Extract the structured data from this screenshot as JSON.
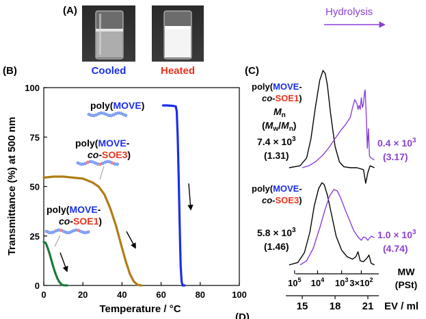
{
  "colors": {
    "blue": "#1a2ee8",
    "red": "#e8321a",
    "purple": "#8a3fd8",
    "olive": "#b07c14",
    "green": "#1a7a3a",
    "black": "#000000",
    "chain_blue": "#8fb0ff",
    "chain_red": "#ff8c8c"
  },
  "panel_a": {
    "label": "(A)",
    "left_caption": "Cooled",
    "right_caption": "Heated"
  },
  "panel_b": {
    "label": "(B)",
    "polymers": [
      {
        "prefix": "poly(",
        "parts": [
          {
            "text": "MOVE",
            "color": "blue"
          }
        ],
        "suffix": ")"
      },
      {
        "line1": [
          {
            "text": "poly(",
            "color": "black"
          },
          {
            "text": "MOVE",
            "color": "blue"
          },
          {
            "text": "-",
            "color": "black"
          }
        ],
        "line2": [
          {
            "text": "co",
            "color": "black",
            "italic": true
          },
          {
            "text": "-",
            "color": "black"
          },
          {
            "text": "SOE3",
            "color": "red"
          },
          {
            "text": ")",
            "color": "black"
          }
        ]
      },
      {
        "line1": [
          {
            "text": "poly(",
            "color": "black"
          },
          {
            "text": "MOVE",
            "color": "blue"
          },
          {
            "text": "-",
            "color": "black"
          }
        ],
        "line2": [
          {
            "text": "co",
            "color": "black",
            "italic": true
          },
          {
            "text": "-",
            "color": "black"
          },
          {
            "text": "SOE1",
            "color": "red"
          },
          {
            "text": ")",
            "color": "black"
          }
        ]
      }
    ]
  },
  "panel_c": {
    "label": "(C)",
    "hydrolysis_label": "Hydrolysis",
    "top": {
      "line1": [
        {
          "text": "poly(",
          "color": "black"
        },
        {
          "text": "MOVE",
          "color": "blue"
        },
        {
          "text": "-",
          "color": "black"
        }
      ],
      "line2": [
        {
          "text": "co",
          "color": "black",
          "italic": true
        },
        {
          "text": "-",
          "color": "black"
        },
        {
          "text": "SOE1",
          "color": "red"
        },
        {
          "text": ")",
          "color": "black"
        }
      ],
      "mn_label": "M",
      "mn_sub": "n",
      "ratio_label": [
        "(",
        "M",
        "w",
        "/",
        "M",
        "n",
        ")"
      ],
      "before_mn": "7.4 × 10",
      "before_mn_exp": "3",
      "before_pdi": "(1.31)",
      "after_mn": "0.4 × 10",
      "after_mn_exp": "3",
      "after_pdi": "(3.17)"
    },
    "bottom": {
      "line1": [
        {
          "text": "poly(",
          "color": "black"
        },
        {
          "text": "MOVE",
          "color": "blue"
        },
        {
          "text": "-",
          "color": "black"
        }
      ],
      "line2": [
        {
          "text": "co",
          "color": "black",
          "italic": true
        },
        {
          "text": "-",
          "color": "black"
        },
        {
          "text": "SOE3",
          "color": "red"
        },
        {
          "text": ")",
          "color": "black"
        }
      ],
      "before_mn": "5.8 × 10",
      "before_mn_exp": "3",
      "before_pdi": "(1.46)",
      "after_mn": "1.0 × 10",
      "after_mn_exp": "3",
      "after_pdi": "(4.74)"
    },
    "mw_axis": {
      "label": "MW",
      "unit": "(PSt)",
      "ticks": [
        {
          "ev": 14.3,
          "base": "10",
          "exp": "5"
        },
        {
          "ev": 16.4,
          "base": "10",
          "exp": "4"
        },
        {
          "ev": 18.6,
          "base": "10",
          "exp": "3"
        },
        {
          "ev": 20.4,
          "base": "3×10",
          "exp": "2"
        }
      ]
    },
    "ev_axis": {
      "label": "EV / ml",
      "ticks": [
        15,
        18,
        21
      ]
    }
  },
  "panel_d": {
    "label": "(D)"
  },
  "chart_data": [
    {
      "type": "line",
      "xlabel": "Temperature / °C",
      "ylabel": "Transmittance (%) at 500 nm",
      "xlim": [
        0,
        100
      ],
      "ylim": [
        0,
        100
      ],
      "xticks": [
        0,
        20,
        40,
        60,
        80,
        100
      ],
      "yticks": [
        0,
        25,
        50,
        75,
        100
      ],
      "grid": false,
      "series": [
        {
          "name": "poly(MOVE)",
          "color": "blue",
          "x": [
            61,
            63,
            66,
            67.5,
            68,
            68.5,
            69,
            69.5,
            70,
            70.5,
            71,
            72
          ],
          "y": [
            91,
            91,
            90.8,
            90.5,
            88,
            75,
            55,
            30,
            10,
            2,
            0,
            0
          ]
        },
        {
          "name": "poly(MOVE-co-SOE3)",
          "color": "olive",
          "x": [
            0,
            5,
            10,
            15,
            20,
            25,
            28,
            31,
            34,
            37,
            40,
            42,
            44,
            46,
            48,
            50
          ],
          "y": [
            54.5,
            55,
            55,
            54.5,
            54,
            52,
            50,
            46,
            39,
            30,
            19,
            12,
            6,
            2,
            0.3,
            0
          ]
        },
        {
          "name": "poly(MOVE-co-SOE1)",
          "color": "green",
          "x": [
            0,
            1,
            2,
            3,
            4,
            5,
            6,
            7,
            8,
            9,
            10,
            12
          ],
          "y": [
            22,
            21.5,
            19,
            16,
            12.5,
            9,
            6,
            3.5,
            1.7,
            0.6,
            0.1,
            0
          ]
        }
      ]
    },
    {
      "type": "line",
      "xlabel": "EV / ml",
      "xlim": [
        13.5,
        22
      ],
      "xticks": [
        15,
        18,
        21
      ],
      "series": [
        {
          "name": "poly(MOVE-co-SOE1) before",
          "color": "black",
          "group": "top",
          "x": [
            13.8,
            14.8,
            15.4,
            15.8,
            16.2,
            16.6,
            16.9,
            17.1,
            17.3,
            17.6,
            18.0,
            18.4,
            18.8,
            19.4,
            20.0,
            20.6,
            20.8,
            21.0,
            21.2,
            21.6
          ],
          "y": [
            0,
            0.02,
            0.1,
            0.3,
            0.62,
            0.9,
            1.0,
            0.97,
            0.85,
            0.55,
            0.22,
            0.06,
            0.01,
            0,
            0,
            -0.02,
            -0.16,
            -0.05,
            0.02,
            0
          ]
        },
        {
          "name": "poly(MOVE-co-SOE1) after",
          "color": "purple",
          "group": "top",
          "x": [
            15.0,
            15.6,
            16.2,
            16.8,
            17.4,
            18.0,
            18.5,
            19.0,
            19.4,
            19.6,
            19.8,
            20.0,
            20.1,
            20.2,
            20.3,
            20.4,
            20.5,
            20.6,
            20.7,
            20.75,
            20.85,
            20.95,
            21.05,
            21.15,
            21.3,
            21.6
          ],
          "y": [
            0,
            0.02,
            0.06,
            0.12,
            0.2,
            0.3,
            0.38,
            0.45,
            0.52,
            0.62,
            0.7,
            0.66,
            0.6,
            0.64,
            0.6,
            0.72,
            0.62,
            0.66,
            0.78,
            0.8,
            0.55,
            0.2,
            0.4,
            0.12,
            0.1,
            0.08
          ]
        },
        {
          "name": "poly(MOVE-co-SOE3) before",
          "color": "black",
          "group": "bottom",
          "x": [
            13.8,
            14.6,
            15.2,
            15.7,
            16.1,
            16.5,
            16.8,
            17.0,
            17.3,
            17.7,
            18.1,
            18.6,
            19.1,
            19.6,
            19.9,
            20.1,
            20.3,
            20.6,
            20.9,
            21.1,
            21.3,
            21.6
          ],
          "y": [
            0,
            0.03,
            0.15,
            0.4,
            0.72,
            0.93,
            1.0,
            0.98,
            0.85,
            0.6,
            0.35,
            0.18,
            0.1,
            0.07,
            0.1,
            0.16,
            0.05,
            0.04,
            0.08,
            0.12,
            0.02,
            0
          ]
        },
        {
          "name": "poly(MOVE-co-SOE3) after",
          "color": "purple",
          "group": "bottom",
          "x": [
            14.8,
            15.4,
            16.0,
            16.6,
            17.1,
            17.5,
            17.9,
            18.2,
            18.5,
            18.9,
            19.3,
            19.7,
            20.1,
            20.4,
            20.6,
            20.8,
            21.0,
            21.3,
            21.6
          ],
          "y": [
            0,
            0.05,
            0.2,
            0.45,
            0.68,
            0.84,
            0.92,
            0.9,
            0.82,
            0.68,
            0.55,
            0.42,
            0.34,
            0.3,
            0.34,
            0.33,
            0.3,
            0.35,
            0.33
          ]
        }
      ]
    }
  ]
}
